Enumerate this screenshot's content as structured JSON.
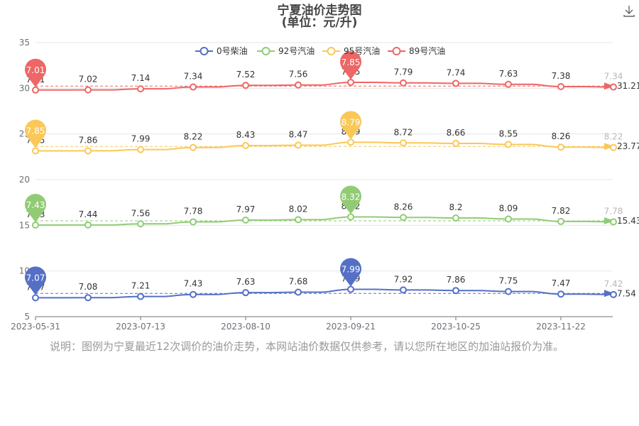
{
  "chart_data": {
    "type": "line",
    "title": "宁夏油价走势图",
    "subtitle": "(单位：元/升)",
    "legend_position": "top-center",
    "grid": true,
    "x_labels": [
      "2023-05-31",
      "2023-07-13",
      "2023-08-10",
      "2023-09-21",
      "2023-10-25",
      "2023-11-22"
    ],
    "ylim": [
      5,
      35
    ],
    "yticks": [
      5,
      10,
      15,
      20,
      25,
      30,
      35
    ],
    "series": [
      {
        "name": "0号柴油",
        "color": "#5470c6",
        "values": [
          7.07,
          7.08,
          7.21,
          7.43,
          7.63,
          7.68,
          7.99,
          7.92,
          7.86,
          7.75,
          7.47,
          7.42
        ],
        "value_labels": [
          "7.07",
          "7.08",
          "7.21",
          "7.43",
          "7.63",
          "7.68",
          "7.99",
          "7.92",
          "7.86",
          "7.75",
          "7.47",
          "7.42"
        ],
        "max_pin": "7.99",
        "min_pin": "7.07",
        "average": "7.54"
      },
      {
        "name": "92号汽油",
        "color": "#91cc75",
        "values": [
          7.43,
          7.44,
          7.56,
          7.78,
          7.97,
          8.02,
          8.32,
          8.26,
          8.2,
          8.09,
          7.82,
          7.78
        ],
        "value_labels": [
          "7.43",
          "7.44",
          "7.56",
          "7.78",
          "7.97",
          "8.02",
          "8.32",
          "8.26",
          "8.2",
          "8.09",
          "7.82",
          "7.78"
        ],
        "max_pin": "8.32",
        "min_pin": "7.43",
        "average": "15.43"
      },
      {
        "name": "95号汽油",
        "color": "#fac858",
        "values": [
          7.85,
          7.86,
          7.99,
          8.22,
          8.43,
          8.47,
          8.79,
          8.72,
          8.66,
          8.55,
          8.26,
          8.22
        ],
        "value_labels": [
          "7.85",
          "7.86",
          "7.99",
          "8.22",
          "8.43",
          "8.47",
          "8.79",
          "8.72",
          "8.66",
          "8.55",
          "8.26",
          "8.22"
        ],
        "max_pin": "8.79",
        "min_pin": "7.85",
        "average": "23.77"
      },
      {
        "name": "89号汽油",
        "color": "#ee6666",
        "values": [
          7.01,
          7.02,
          7.14,
          7.34,
          7.52,
          7.56,
          7.85,
          7.79,
          7.74,
          7.63,
          7.38,
          7.34
        ],
        "value_labels": [
          "7.01",
          "7.02",
          "7.14",
          "7.34",
          "7.52",
          "7.56",
          "7.85",
          "7.79",
          "7.74",
          "7.63",
          "7.38",
          "7.34"
        ],
        "max_pin": "7.85",
        "min_pin": "7.01",
        "average": "31.21"
      }
    ]
  },
  "note": "说明：图例为宁夏最近12次调价的油价走势，本网站油价数据仅供参考，请以您所在地区的加油站报价为准。",
  "toolbar": {
    "download_icon": "download-icon"
  }
}
